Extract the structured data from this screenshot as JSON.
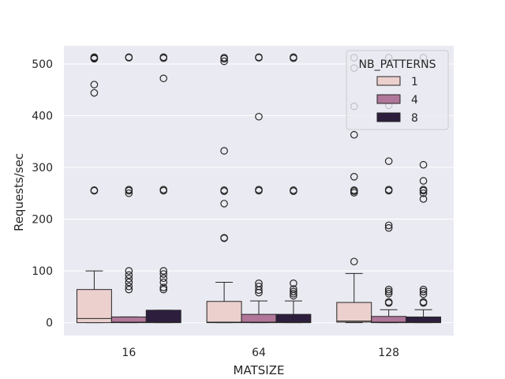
{
  "chart_data": {
    "type": "box",
    "xlabel": "MATSIZE",
    "ylabel": "Requests/sec",
    "categories": [
      "16",
      "64",
      "128"
    ],
    "ylim": [
      -25,
      535
    ],
    "yticks": [
      0,
      100,
      200,
      300,
      400,
      500
    ],
    "grid": true,
    "legend": {
      "title": "NB_PATTERNS",
      "placement": "top-right",
      "entries": [
        "1",
        "4",
        "8"
      ]
    },
    "colors": {
      "1": "#ebd0cd",
      "4": "#b0779a",
      "8": "#2d1e3e",
      "background": "#eaeaf2",
      "edge": "#262626"
    },
    "series": [
      {
        "name": "1",
        "boxes": [
          {
            "category": "16",
            "whisker_low": 0,
            "q1": 0,
            "median": 8,
            "q3": 64,
            "whisker_high": 100,
            "outliers": [
              255,
              255,
              256,
              444,
              460,
              510,
              511,
              512,
              513
            ]
          },
          {
            "category": "64",
            "whisker_low": 0,
            "q1": 0,
            "median": 1,
            "q3": 41,
            "whisker_high": 78,
            "outliers": [
              163,
              164,
              230,
              254,
              256,
              332,
              505,
              510,
              512
            ]
          },
          {
            "category": "128",
            "whisker_low": 0,
            "q1": 1,
            "median": 3,
            "q3": 39,
            "whisker_high": 95,
            "outliers": [
              118,
              251,
              254,
              256,
              282,
              363,
              418,
              492,
              512
            ]
          }
        ]
      },
      {
        "name": "4",
        "boxes": [
          {
            "category": "16",
            "whisker_low": 0,
            "q1": 0,
            "median": 1,
            "q3": 11,
            "whisker_high": 11,
            "outliers": [
              64,
              70,
              78,
              85,
              92,
              100,
              250,
              255,
              257,
              512,
              513
            ]
          },
          {
            "category": "64",
            "whisker_low": 0,
            "q1": 0,
            "median": 1,
            "q3": 16,
            "whisker_high": 42,
            "outliers": [
              58,
              63,
              70,
              76,
              255,
              257,
              398,
              512,
              513
            ]
          },
          {
            "category": "128",
            "whisker_low": 0,
            "q1": 0,
            "median": 1,
            "q3": 12,
            "whisker_high": 25,
            "outliers": [
              38,
              40,
              56,
              60,
              64,
              183,
              188,
              255,
              257,
              312,
              420,
              512
            ]
          }
        ]
      },
      {
        "name": "8",
        "boxes": [
          {
            "category": "16",
            "whisker_low": 0,
            "q1": 0,
            "median": 1,
            "q3": 24,
            "whisker_high": 24,
            "outliers": [
              64,
              68,
              78,
              86,
              94,
              100,
              255,
              257,
              472,
              511,
              513
            ]
          },
          {
            "category": "64",
            "whisker_low": 0,
            "q1": 0,
            "median": 1,
            "q3": 16,
            "whisker_high": 42,
            "outliers": [
              52,
              56,
              60,
              65,
              76,
              254,
              256,
              511,
              513
            ]
          },
          {
            "category": "128",
            "whisker_low": 0,
            "q1": 0,
            "median": 1,
            "q3": 11,
            "whisker_high": 25,
            "outliers": [
              38,
              40,
              55,
              60,
              64,
              239,
              250,
              255,
              257,
              274,
              305,
              512
            ]
          }
        ]
      }
    ]
  }
}
